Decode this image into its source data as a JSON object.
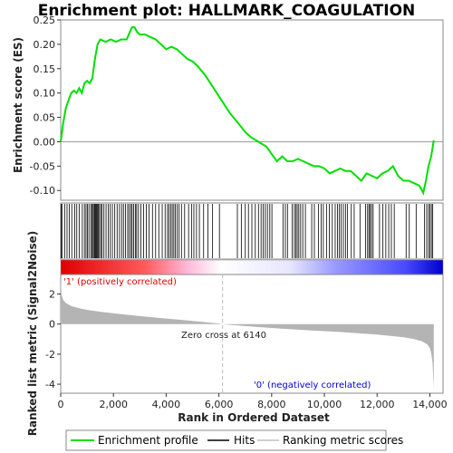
{
  "chart_data": {
    "type": "line",
    "title": "Enrichment plot: HALLMARK_COAGULATION",
    "es_panel": {
      "ylabel": "Enrichment score (ES)",
      "ylim": [
        -0.12,
        0.25
      ],
      "yticks": [
        "0.25",
        "0.20",
        "0.15",
        "0.10",
        "0.05",
        "0.00",
        "-0.05",
        "-0.10"
      ],
      "ytick_values": [
        0.25,
        0.2,
        0.15,
        0.1,
        0.05,
        0.0,
        -0.05,
        -0.1
      ],
      "line_color": "#00e000",
      "x": [
        0,
        100,
        200,
        300,
        400,
        500,
        600,
        700,
        800,
        900,
        1000,
        1100,
        1200,
        1300,
        1400,
        1500,
        1700,
        1900,
        2100,
        2300,
        2500,
        2700,
        2800,
        2900,
        3000,
        3200,
        3400,
        3600,
        3800,
        4000,
        4200,
        4400,
        4600,
        4800,
        5000,
        5200,
        5500,
        5800,
        6100,
        6400,
        6700,
        7000,
        7200,
        7500,
        7800,
        8000,
        8200,
        8400,
        8600,
        8800,
        9000,
        9200,
        9400,
        9600,
        9800,
        10000,
        10200,
        10400,
        10600,
        10800,
        11000,
        11200,
        11400,
        11600,
        11800,
        12000,
        12200,
        12400,
        12600,
        12800,
        13000,
        13200,
        13400,
        13600,
        13750,
        13850,
        13950,
        14050,
        14150
      ],
      "y": [
        0.0,
        0.04,
        0.07,
        0.085,
        0.1,
        0.105,
        0.1,
        0.11,
        0.1,
        0.12,
        0.125,
        0.12,
        0.13,
        0.17,
        0.2,
        0.21,
        0.205,
        0.21,
        0.205,
        0.21,
        0.21,
        0.235,
        0.235,
        0.225,
        0.22,
        0.22,
        0.215,
        0.21,
        0.2,
        0.19,
        0.195,
        0.19,
        0.18,
        0.17,
        0.165,
        0.155,
        0.135,
        0.11,
        0.085,
        0.06,
        0.04,
        0.02,
        0.01,
        0.0,
        -0.01,
        -0.025,
        -0.04,
        -0.03,
        -0.04,
        -0.04,
        -0.035,
        -0.04,
        -0.045,
        -0.05,
        -0.05,
        -0.055,
        -0.065,
        -0.06,
        -0.055,
        -0.06,
        -0.06,
        -0.07,
        -0.08,
        -0.065,
        -0.07,
        -0.075,
        -0.065,
        -0.06,
        -0.05,
        -0.07,
        -0.08,
        -0.08,
        -0.085,
        -0.09,
        -0.105,
        -0.08,
        -0.05,
        -0.03,
        0.003
      ]
    },
    "hits": [
      20,
      60,
      150,
      240,
      330,
      420,
      530,
      610,
      700,
      820,
      900,
      960,
      1010,
      1070,
      1140,
      1190,
      1230,
      1270,
      1300,
      1330,
      1360,
      1390,
      1430,
      1470,
      1520,
      1570,
      1640,
      1720,
      1800,
      1880,
      1960,
      2050,
      2140,
      2230,
      2310,
      2380,
      2460,
      2540,
      2600,
      2660,
      2710,
      2770,
      2830,
      2880,
      2950,
      3040,
      3140,
      3250,
      3350,
      3480,
      3600,
      3720,
      3850,
      3960,
      4050,
      4110,
      4170,
      4230,
      4290,
      4350,
      4420,
      4490,
      4580,
      4700,
      4850,
      4960,
      5050,
      5150,
      5260,
      5420,
      5580,
      5760,
      6020,
      6700,
      6850,
      7000,
      7120,
      7250,
      7380,
      7500,
      7600,
      7680,
      7760,
      7840,
      7930,
      8010,
      8430,
      8520,
      8600,
      8780,
      8860,
      8920,
      8970,
      9030,
      9100,
      9180,
      9280,
      9520,
      9620,
      9780,
      9880,
      9960,
      10080,
      10190,
      10300,
      10410,
      10500,
      10570,
      10640,
      10720,
      10800,
      10880,
      11020,
      11130,
      11350,
      11560,
      11640,
      11690,
      11740,
      11790,
      11850,
      12090,
      12220,
      12330,
      12440,
      12540,
      12650,
      13100,
      13220,
      13480,
      13800,
      13880,
      13950,
      14000,
      14060,
      14110
    ],
    "rank_bar": {
      "label_pos": "'1' (positively correlated)",
      "label_neg": "'0' (negatively correlated)",
      "pos_color": "#dd0000",
      "neg_color": "#0000dd"
    },
    "metric_panel": {
      "ylabel": "Ranked list metric (Signal2Noise)",
      "ylim": [
        -4.6,
        3.3
      ],
      "yticks": [
        "2",
        "0",
        "-2",
        "-4"
      ],
      "ytick_values": [
        2,
        0,
        -2,
        -4
      ],
      "x": [
        0,
        30,
        100,
        200,
        400,
        700,
        1000,
        1500,
        2000,
        2500,
        3000,
        3500,
        4000,
        4500,
        5000,
        5500,
        6000,
        6140,
        6500,
        7000,
        7500,
        8000,
        8500,
        9000,
        9500,
        10000,
        10500,
        11000,
        11500,
        12000,
        12500,
        13000,
        13400,
        13700,
        13900,
        14000,
        14050,
        14100,
        14150
      ],
      "y": [
        3.2,
        2.0,
        1.6,
        1.4,
        1.2,
        1.05,
        0.95,
        0.82,
        0.72,
        0.62,
        0.53,
        0.45,
        0.37,
        0.29,
        0.21,
        0.13,
        0.04,
        0.0,
        -0.06,
        -0.13,
        -0.2,
        -0.26,
        -0.32,
        -0.37,
        -0.42,
        -0.47,
        -0.52,
        -0.57,
        -0.63,
        -0.7,
        -0.78,
        -0.88,
        -1.0,
        -1.15,
        -1.35,
        -1.6,
        -1.9,
        -2.6,
        -4.3
      ],
      "zero_cross_label": "Zero cross at 6140",
      "zero_cross": 6140
    },
    "xaxis": {
      "label": "Rank in Ordered Dataset",
      "xlim": [
        0,
        14500
      ],
      "ticks": [
        "0",
        "2,000",
        "4,000",
        "6,000",
        "8,000",
        "10,000",
        "12,000",
        "14,000"
      ],
      "tick_values": [
        0,
        2000,
        4000,
        6000,
        8000,
        10000,
        12000,
        14000
      ]
    },
    "legend": {
      "placement": "bottom",
      "items": [
        {
          "label": "Enrichment profile",
          "color": "#00e000"
        },
        {
          "label": "Hits",
          "color": "#000000"
        },
        {
          "label": "Ranking metric scores",
          "color": "#c0c0c0"
        }
      ]
    }
  }
}
